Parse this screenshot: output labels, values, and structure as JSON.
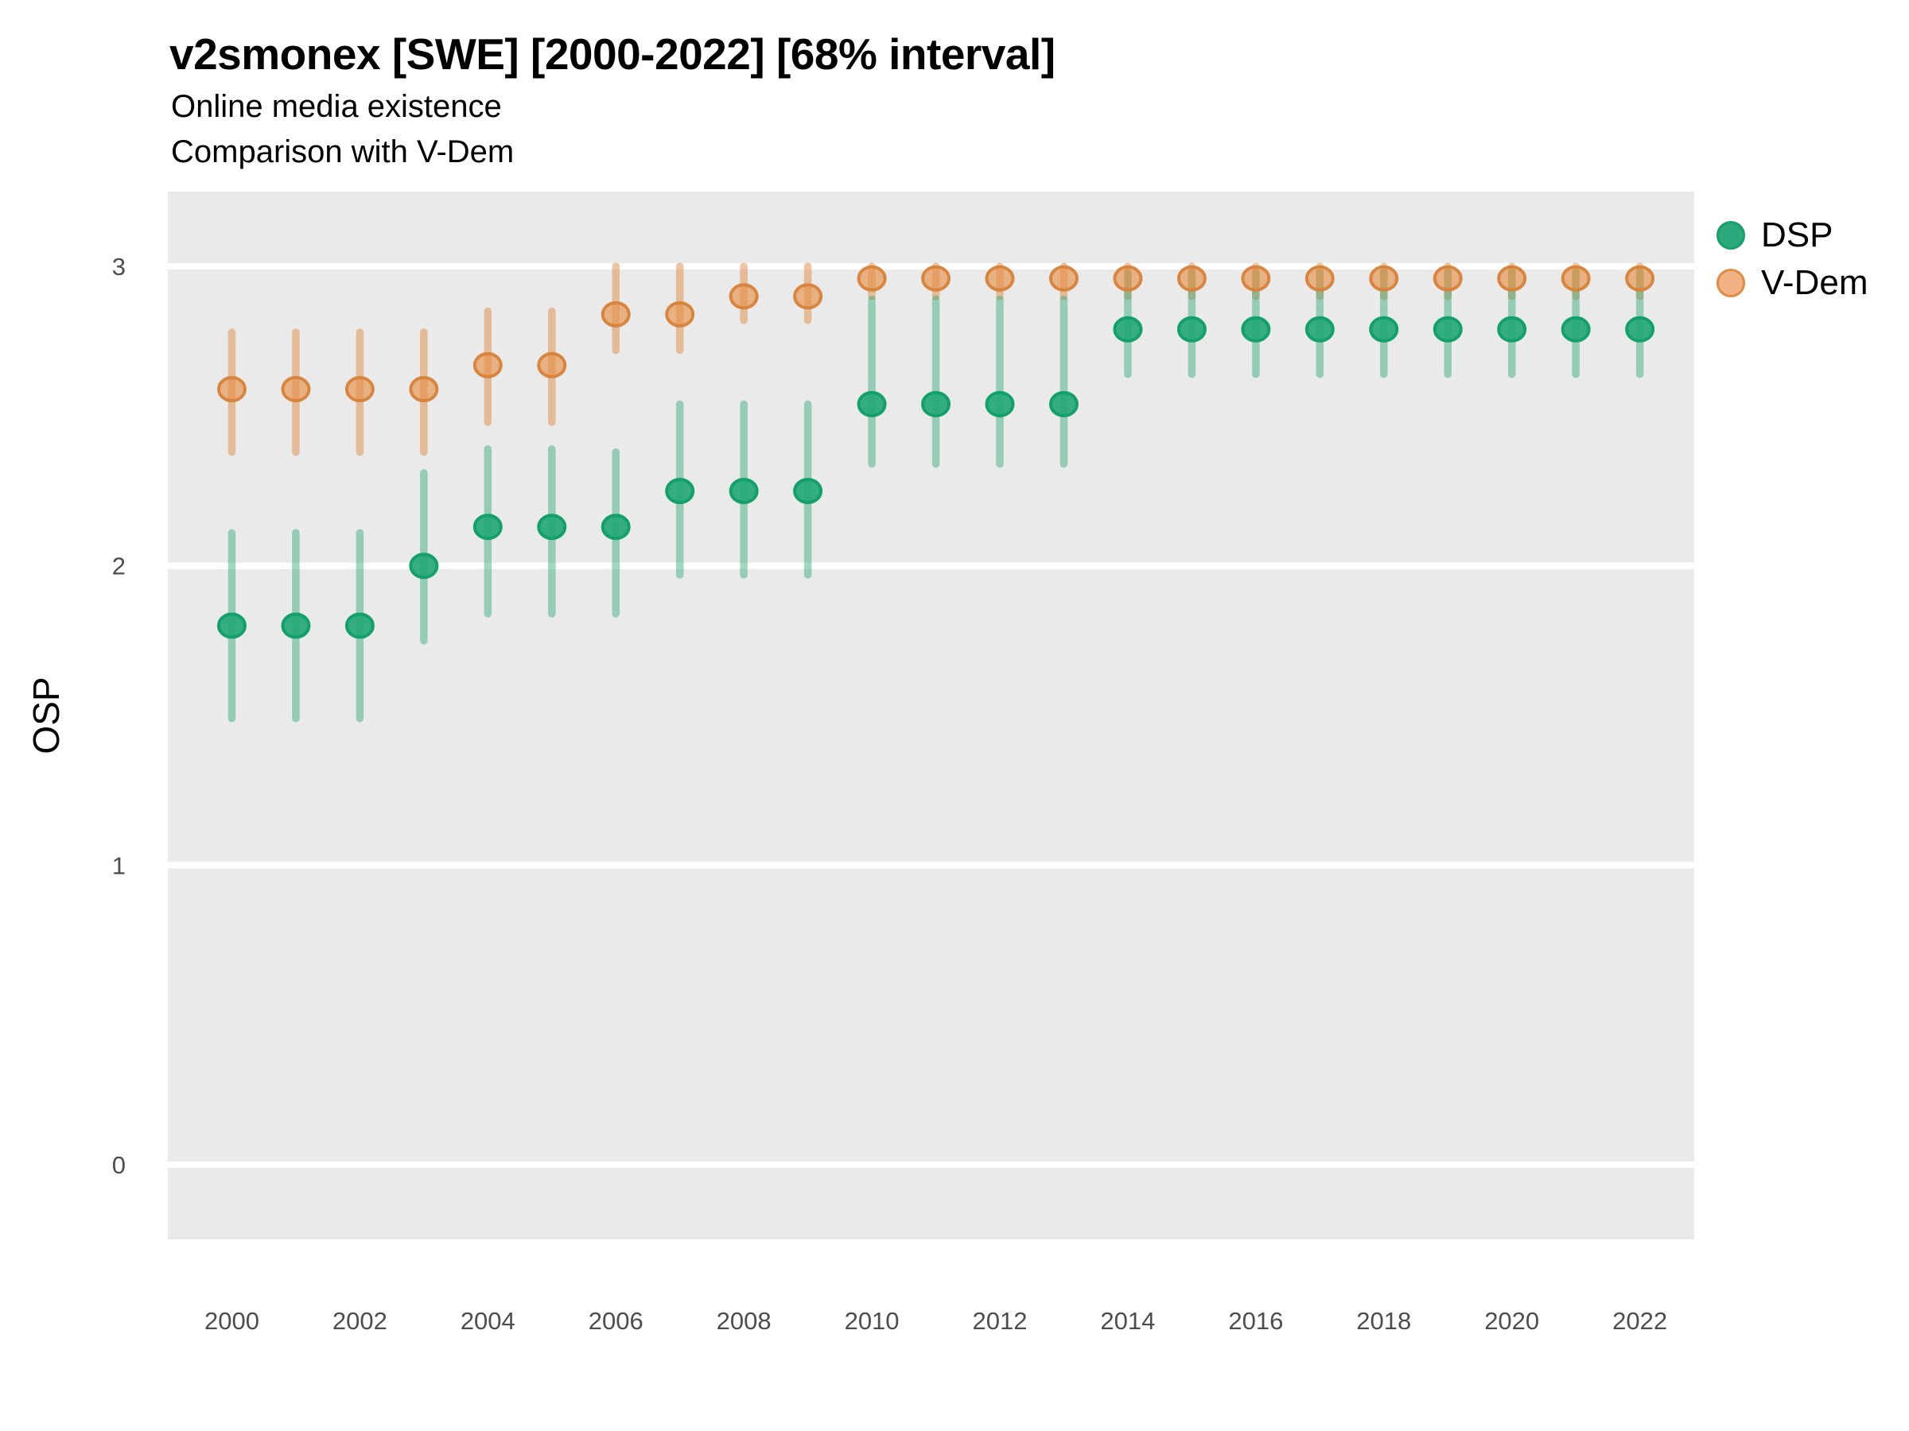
{
  "header": {
    "title": "v2smonex [SWE] [2000-2022] [68% interval]",
    "subtitle_line1": "Online media existence",
    "subtitle_line2": "Comparison with V-Dem"
  },
  "y_axis": {
    "label": "OSP",
    "tick_values": [
      0,
      1,
      2,
      3
    ]
  },
  "x_axis": {
    "tick_values": [
      2000,
      2002,
      2004,
      2006,
      2008,
      2010,
      2012,
      2014,
      2016,
      2018,
      2020,
      2022
    ]
  },
  "legend": {
    "items": [
      {
        "label": "DSP"
      },
      {
        "label": "V-Dem"
      }
    ]
  },
  "colors": {
    "page_background": "#ffffff",
    "panel_background": "#eaeaea",
    "gridline": "#ffffff",
    "tick_text": "#4d4d4d",
    "title_text": "#000000",
    "legend_dsp_fill": "#2ba87b",
    "legend_dsp_stroke": "#1a9f6c",
    "legend_vdem_fill": "#f0b183",
    "legend_vdem_stroke": "#de8b45"
  },
  "chart_data": {
    "type": "pointrange",
    "title": "v2smonex [SWE] [2000-2022] [68% interval]",
    "subtitle": [
      "Online media existence",
      "Comparison with V-Dem"
    ],
    "interval_level": "68%",
    "xlabel": "",
    "ylabel": "OSP",
    "ylim": [
      -0.25,
      3.25
    ],
    "grid": "major-horizontal-only",
    "legend_position": "right",
    "x": [
      2000,
      2001,
      2002,
      2003,
      2004,
      2005,
      2006,
      2007,
      2008,
      2009,
      2010,
      2011,
      2012,
      2013,
      2014,
      2015,
      2016,
      2017,
      2018,
      2019,
      2020,
      2021,
      2022
    ],
    "series": [
      {
        "name": "V-Dem",
        "bar_color": "rgba(224,138,68,0.50)",
        "point_fill": "rgba(231,146,74,0.65)",
        "point_stroke": "rgba(215,130,58,0.95)",
        "center": [
          2.59,
          2.59,
          2.59,
          2.59,
          2.67,
          2.67,
          2.84,
          2.84,
          2.9,
          2.9,
          2.96,
          2.96,
          2.96,
          2.96,
          2.96,
          2.96,
          2.96,
          2.96,
          2.96,
          2.96,
          2.96,
          2.96,
          2.96
        ],
        "lower": [
          2.38,
          2.38,
          2.38,
          2.38,
          2.48,
          2.48,
          2.72,
          2.72,
          2.82,
          2.82,
          2.9,
          2.9,
          2.9,
          2.9,
          2.9,
          2.9,
          2.9,
          2.9,
          2.9,
          2.9,
          2.9,
          2.9,
          2.9
        ],
        "upper": [
          2.78,
          2.78,
          2.78,
          2.78,
          2.85,
          2.85,
          3.0,
          3.0,
          3.0,
          3.0,
          3.0,
          3.0,
          3.0,
          3.0,
          3.0,
          3.0,
          3.0,
          3.0,
          3.0,
          3.0,
          3.0,
          3.0,
          3.0
        ]
      },
      {
        "name": "DSP",
        "bar_color": "rgba(44,168,120,0.45)",
        "point_fill": "rgba(36,168,118,0.92)",
        "point_stroke": "#14a06a",
        "center": [
          1.8,
          1.8,
          1.8,
          2.0,
          2.13,
          2.13,
          2.13,
          2.25,
          2.25,
          2.25,
          2.54,
          2.54,
          2.54,
          2.54,
          2.79,
          2.79,
          2.79,
          2.79,
          2.79,
          2.79,
          2.79,
          2.79,
          2.79
        ],
        "lower": [
          1.49,
          1.49,
          1.49,
          1.75,
          1.84,
          1.84,
          1.84,
          1.97,
          1.97,
          1.97,
          2.34,
          2.34,
          2.34,
          2.34,
          2.64,
          2.64,
          2.64,
          2.64,
          2.64,
          2.64,
          2.64,
          2.64,
          2.64
        ],
        "upper": [
          2.11,
          2.11,
          2.11,
          2.31,
          2.39,
          2.39,
          2.38,
          2.54,
          2.54,
          2.54,
          2.89,
          2.89,
          2.89,
          2.89,
          2.98,
          2.98,
          2.98,
          2.98,
          2.98,
          2.98,
          2.98,
          2.98,
          2.98
        ]
      }
    ]
  }
}
